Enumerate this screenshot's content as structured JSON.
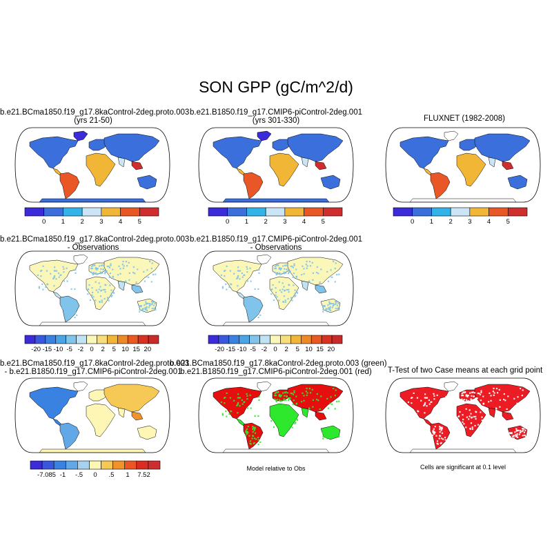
{
  "figure": {
    "title": "SON GPP (gC/m^2/d)"
  },
  "colors": {
    "palette_abs": [
      "#3b2bd9",
      "#3a6fdc",
      "#33b3e8",
      "#cbe4f6",
      "#f2b636",
      "#ea5726",
      "#cf2e2e"
    ],
    "palette_diff": [
      "#3b2bd9",
      "#3a58de",
      "#3a82e2",
      "#4aa5e6",
      "#80c4ec",
      "#bfe3f4",
      "#fbf7b8",
      "#f7de7a",
      "#f2b636",
      "#ee8a25",
      "#e95a22",
      "#d93122",
      "#c92a2a"
    ],
    "palette_diff2": [
      "#3b2bd9",
      "#3a58de",
      "#3a82e2",
      "#62a8e7",
      "#a7d2ef",
      "#fdf6b5",
      "#f6c956",
      "#f09328",
      "#ea5724",
      "#db2c23",
      "#cf2e2e"
    ],
    "ocean": "#ffffff",
    "sig": "#ec1c24",
    "green": "#2ee82e",
    "red": "#e50f0f"
  },
  "panels": [
    {
      "id": "p11",
      "title_lines": [
        "b.e21.BCma1850.f19_g17.8kaControl-2deg.proto.003",
        "(yrs 21-50)"
      ],
      "type": "abs",
      "colorbar": {
        "palette": "palette_abs",
        "labels": [
          "0",
          "1",
          "2",
          "3",
          "4",
          "5"
        ]
      }
    },
    {
      "id": "p12",
      "title_lines": [
        "b.e21.B1850.f19_g17.CMIP6-piControl-2deg.001",
        "(yrs 301-330)"
      ],
      "type": "abs",
      "colorbar": {
        "palette": "palette_abs",
        "labels": [
          "0",
          "1",
          "2",
          "3",
          "4",
          "5"
        ]
      }
    },
    {
      "id": "p13",
      "title_lines": [
        "FLUXNET (1982-2008)"
      ],
      "type": "abs",
      "colorbar": {
        "palette": "palette_abs",
        "labels": [
          "0",
          "1",
          "2",
          "3",
          "4",
          "5"
        ]
      }
    },
    {
      "id": "p21",
      "title_lines": [
        "b.e21.BCma1850.f19_g17.8kaControl-2deg.proto.003",
        "- Observations"
      ],
      "type": "diff",
      "colorbar": {
        "palette": "palette_diff",
        "labels": [
          "-20",
          "-15",
          "-10",
          "-5",
          "-2",
          "0",
          "2",
          "5",
          "10",
          "15",
          "20"
        ]
      }
    },
    {
      "id": "p22",
      "title_lines": [
        "b.e21.B1850.f19_g17.CMIP6-piControl-2deg.001",
        "- Observations"
      ],
      "type": "diff",
      "colorbar": {
        "palette": "palette_diff",
        "labels": [
          "-20",
          "-15",
          "-10",
          "-5",
          "-2",
          "0",
          "2",
          "5",
          "10",
          "15",
          "20"
        ]
      }
    },
    {
      "id": "p31",
      "title_lines": [
        "b.e21.BCma1850.f19_g17.8kaControl-2deg.proto.003",
        "- b.e21.B1850.f19_g17.CMIP6-piControl-2deg.001"
      ],
      "type": "diff2",
      "colorbar": {
        "palette": "palette_diff2",
        "labels": [
          "-7.085",
          "-1",
          "-.5",
          "0",
          ".5",
          "1",
          "7.52"
        ]
      }
    },
    {
      "id": "p32",
      "title_lines": [
        "b.e21.BCma1850.f19_g17.8kaControl-2deg.proto.003 (green)",
        "b.e21.B1850.f19_g17.CMIP6-piControl-2deg.001 (red)"
      ],
      "type": "rel",
      "note": "Model relative to Obs"
    },
    {
      "id": "p33",
      "title_lines": [
        "T-Test of two Case means at each grid point"
      ],
      "type": "sig",
      "note": "Cells are significant at 0.1 level"
    }
  ]
}
